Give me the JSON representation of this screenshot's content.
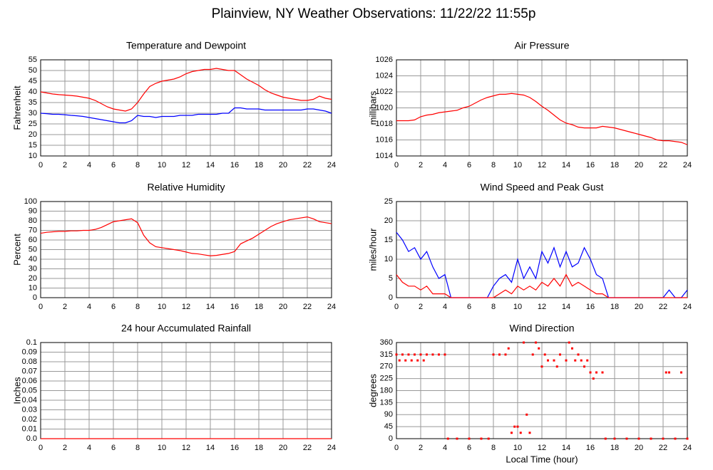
{
  "title": "Plainview, NY Weather Observations: 11/22/22 11:55p",
  "chart_data": [
    {
      "type": "line",
      "title": "Temperature and Dewpoint",
      "ylabel": "Fahrenheit",
      "x": [
        0,
        0.5,
        1,
        1.5,
        2,
        2.5,
        3,
        3.5,
        4,
        4.5,
        5,
        5.5,
        6,
        6.5,
        7,
        7.5,
        8,
        8.5,
        9,
        9.5,
        10,
        10.5,
        11,
        11.5,
        12,
        12.5,
        13,
        13.5,
        14,
        14.5,
        15,
        15.5,
        16,
        16.5,
        17,
        17.5,
        18,
        18.5,
        19,
        19.5,
        20,
        20.5,
        21,
        21.5,
        22,
        22.5,
        23,
        23.5,
        24
      ],
      "series": [
        {
          "color": "#ff0000",
          "values": [
            40,
            39.5,
            39,
            38.7,
            38.5,
            38.3,
            38,
            37.5,
            37,
            36,
            34.5,
            33,
            32,
            31.5,
            31,
            32,
            35,
            39,
            42.5,
            44,
            45,
            45.5,
            46,
            47,
            48.5,
            49.5,
            50,
            50.5,
            50.5,
            51,
            50.5,
            50,
            50,
            48,
            46,
            44.5,
            43,
            41,
            39.5,
            38.5,
            37.5,
            37,
            36.5,
            36,
            36,
            36.5,
            38,
            37,
            36.5
          ]
        },
        {
          "color": "#0000ff",
          "values": [
            30,
            29.8,
            29.5,
            29.5,
            29.3,
            29,
            28.8,
            28.5,
            28,
            27.5,
            27,
            26.5,
            26,
            25.5,
            25.5,
            26.5,
            29,
            28.5,
            28.5,
            28,
            28.5,
            28.5,
            28.5,
            29,
            29,
            29,
            29.5,
            29.5,
            29.5,
            29.5,
            30,
            30,
            32.5,
            32.5,
            32,
            32,
            32,
            31.5,
            31.5,
            31.5,
            31.5,
            31.5,
            31.5,
            31.5,
            32,
            32,
            31.5,
            31,
            30
          ]
        }
      ],
      "xlim": [
        0,
        24
      ],
      "xticks": [
        0,
        2,
        4,
        6,
        8,
        10,
        12,
        14,
        16,
        18,
        20,
        22,
        24
      ],
      "ylim": [
        10,
        55
      ],
      "yticks": [
        10,
        15,
        20,
        25,
        30,
        35,
        40,
        45,
        50,
        55
      ],
      "grid": true
    },
    {
      "type": "line",
      "title": "Air Pressure",
      "ylabel": "millibars",
      "x": [
        0,
        0.5,
        1,
        1.5,
        2,
        2.5,
        3,
        3.5,
        4,
        4.5,
        5,
        5.5,
        6,
        6.5,
        7,
        7.5,
        8,
        8.5,
        9,
        9.5,
        10,
        10.5,
        11,
        11.5,
        12,
        12.5,
        13,
        13.5,
        14,
        14.5,
        15,
        15.5,
        16,
        16.5,
        17,
        17.5,
        18,
        18.5,
        19,
        19.5,
        20,
        20.5,
        21,
        21.5,
        22,
        22.5,
        23,
        23.5,
        24
      ],
      "series": [
        {
          "color": "#ff0000",
          "values": [
            1018.4,
            1018.4,
            1018.4,
            1018.5,
            1018.9,
            1019.1,
            1019.2,
            1019.4,
            1019.5,
            1019.6,
            1019.7,
            1020,
            1020.2,
            1020.6,
            1021,
            1021.3,
            1021.5,
            1021.7,
            1021.7,
            1021.8,
            1021.7,
            1021.6,
            1021.3,
            1020.8,
            1020.2,
            1019.7,
            1019.1,
            1018.5,
            1018.1,
            1017.9,
            1017.6,
            1017.5,
            1017.5,
            1017.5,
            1017.7,
            1017.6,
            1017.5,
            1017.3,
            1017.1,
            1016.9,
            1016.7,
            1016.5,
            1016.3,
            1016,
            1015.9,
            1015.9,
            1015.8,
            1015.7,
            1015.4
          ]
        }
      ],
      "xlim": [
        0,
        24
      ],
      "xticks": [
        0,
        2,
        4,
        6,
        8,
        10,
        12,
        14,
        16,
        18,
        20,
        22,
        24
      ],
      "ylim": [
        1014,
        1026
      ],
      "yticks": [
        1014,
        1016,
        1018,
        1020,
        1022,
        1024,
        1026
      ],
      "grid": true
    },
    {
      "type": "line",
      "title": "Relative Humidity",
      "ylabel": "Percent",
      "x": [
        0,
        0.5,
        1,
        1.5,
        2,
        2.5,
        3,
        3.5,
        4,
        4.5,
        5,
        5.5,
        6,
        6.5,
        7,
        7.5,
        8,
        8.5,
        9,
        9.5,
        10,
        10.5,
        11,
        11.5,
        12,
        12.5,
        13,
        13.5,
        14,
        14.5,
        15,
        15.5,
        16,
        16.5,
        17,
        17.5,
        18,
        18.5,
        19,
        19.5,
        20,
        20.5,
        21,
        21.5,
        22,
        22.5,
        23,
        23.5,
        24
      ],
      "series": [
        {
          "color": "#ff0000",
          "values": [
            67,
            68,
            68.5,
            69,
            69,
            69.5,
            69.5,
            70,
            70,
            71,
            73,
            76,
            79,
            80,
            81,
            82,
            78,
            65,
            57,
            53,
            52,
            51,
            50,
            49,
            47.5,
            46,
            45.5,
            44.5,
            43.5,
            44,
            45,
            46,
            48,
            56,
            59,
            62,
            66,
            70,
            74,
            77,
            79,
            81,
            82,
            83,
            84,
            82,
            79,
            78,
            77
          ]
        }
      ],
      "xlim": [
        0,
        24
      ],
      "xticks": [
        0,
        2,
        4,
        6,
        8,
        10,
        12,
        14,
        16,
        18,
        20,
        22,
        24
      ],
      "ylim": [
        0,
        100
      ],
      "yticks": [
        0,
        10,
        20,
        30,
        40,
        50,
        60,
        70,
        80,
        90,
        100
      ],
      "grid": true
    },
    {
      "type": "line",
      "title": "Wind Speed and Peak Gust",
      "ylabel": "miles/hour",
      "x": [
        0,
        0.5,
        1,
        1.5,
        2,
        2.5,
        3,
        3.5,
        4,
        4.5,
        5,
        5.5,
        6,
        6.5,
        7,
        7.5,
        8,
        8.5,
        9,
        9.5,
        10,
        10.5,
        11,
        11.5,
        12,
        12.5,
        13,
        13.5,
        14,
        14.5,
        15,
        15.5,
        16,
        16.5,
        17,
        17.5,
        18,
        18.5,
        19,
        19.5,
        20,
        20.5,
        21,
        21.5,
        22,
        22.5,
        23,
        23.5,
        24
      ],
      "series": [
        {
          "color": "#0000ff",
          "values": [
            17,
            15,
            12,
            13,
            10,
            12,
            8,
            5,
            6,
            0,
            0,
            0,
            0,
            0,
            0,
            0,
            3,
            5,
            6,
            4,
            10,
            5,
            8,
            5,
            12,
            9,
            13,
            8,
            12,
            8,
            9,
            13,
            10,
            6,
            5,
            0,
            0,
            0,
            0,
            0,
            0,
            0,
            0,
            0,
            0,
            2,
            0,
            0,
            2
          ]
        },
        {
          "color": "#ff0000",
          "values": [
            6,
            4,
            3,
            3,
            2,
            3,
            1,
            1,
            1,
            0,
            0,
            0,
            0,
            0,
            0,
            0,
            0,
            1,
            2,
            1,
            3,
            2,
            3,
            2,
            4,
            3,
            5,
            3,
            6,
            3,
            4,
            3,
            2,
            1,
            1,
            0,
            0,
            0,
            0,
            0,
            0,
            0,
            0,
            0,
            0,
            0,
            0,
            0,
            0
          ]
        }
      ],
      "xlim": [
        0,
        24
      ],
      "xticks": [
        0,
        2,
        4,
        6,
        8,
        10,
        12,
        14,
        16,
        18,
        20,
        22,
        24
      ],
      "ylim": [
        0,
        25
      ],
      "yticks": [
        0,
        5,
        10,
        15,
        20,
        25
      ],
      "grid": true
    },
    {
      "type": "line",
      "title": "24 hour Accumulated Rainfall",
      "ylabel": "Inches",
      "x": [
        0,
        1,
        2,
        3,
        4,
        5,
        6,
        7,
        8,
        9,
        10,
        11,
        12,
        13,
        14,
        15,
        16,
        17,
        18,
        19,
        20,
        21,
        22,
        23,
        24
      ],
      "series": [
        {
          "color": "#ff0000",
          "values": [
            0,
            0,
            0,
            0,
            0,
            0,
            0,
            0,
            0,
            0,
            0,
            0,
            0,
            0,
            0,
            0,
            0,
            0,
            0,
            0,
            0,
            0,
            0,
            0,
            0
          ]
        }
      ],
      "xlim": [
        0,
        24
      ],
      "xticks": [
        0,
        2,
        4,
        6,
        8,
        10,
        12,
        14,
        16,
        18,
        20,
        22,
        24
      ],
      "ylim": [
        0,
        0.1
      ],
      "yticks": [
        {
          "value": 0,
          "label": "0.0"
        },
        0.01,
        0.02,
        0.03,
        0.04,
        0.05,
        0.06,
        0.07,
        0.08,
        0.09,
        0.1
      ],
      "grid": true
    },
    {
      "type": "scatter",
      "title": "Wind Direction",
      "ylabel": "degrees",
      "xlabel": "Local Time (hour)",
      "x": [
        0,
        0.25,
        0.5,
        0.75,
        1,
        1.25,
        1.5,
        1.75,
        2,
        2.25,
        2.5,
        3,
        3.5,
        4,
        4.25,
        5,
        6,
        7,
        7.6,
        8,
        8.5,
        9,
        9.25,
        9.5,
        9.75,
        10,
        10.25,
        10.5,
        10.75,
        11,
        11.25,
        11.5,
        11.75,
        12,
        12.25,
        12.5,
        13,
        13.25,
        13.5,
        14,
        14.25,
        14.5,
        14.75,
        15,
        15.25,
        15.5,
        15.75,
        16,
        16.25,
        16.5,
        17,
        17.25,
        18,
        19,
        20,
        21,
        22,
        22.25,
        22.5,
        23,
        23.5,
        24
      ],
      "series": [
        {
          "color": "#ff0000",
          "values": [
            315,
            293,
            315,
            293,
            315,
            293,
            315,
            293,
            315,
            293,
            315,
            315,
            315,
            315,
            0,
            0,
            0,
            0,
            0,
            315,
            315,
            315,
            338,
            22,
            45,
            45,
            22,
            360,
            90,
            22,
            315,
            360,
            338,
            270,
            315,
            293,
            293,
            270,
            315,
            293,
            360,
            338,
            293,
            315,
            293,
            270,
            293,
            248,
            225,
            248,
            248,
            0,
            0,
            0,
            0,
            0,
            0,
            248,
            248,
            0,
            248,
            0
          ]
        }
      ],
      "xlim": [
        0,
        24
      ],
      "xticks": [
        0,
        2,
        4,
        6,
        8,
        10,
        12,
        14,
        16,
        18,
        20,
        22,
        24
      ],
      "ylim": [
        0,
        360
      ],
      "yticks": [
        0,
        45,
        90,
        135,
        180,
        225,
        270,
        315,
        360
      ],
      "grid": true
    }
  ]
}
